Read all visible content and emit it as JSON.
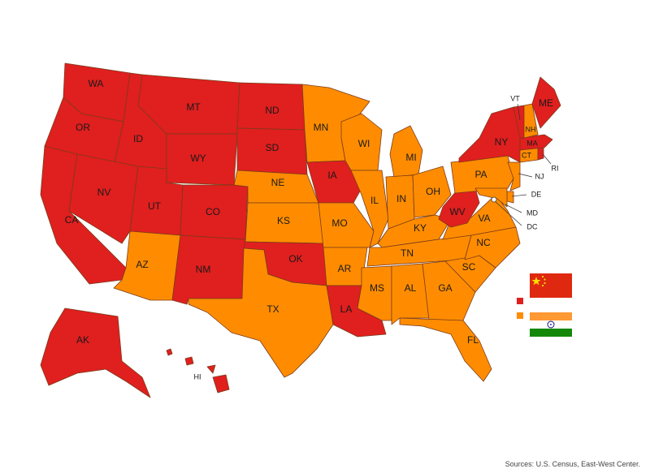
{
  "colors": {
    "china": "#e01f1f",
    "india": "#ff8c00",
    "border": "#7a3b1a"
  },
  "legend": [
    {
      "group": "china",
      "flag": "china-flag"
    },
    {
      "group": "india",
      "flag": "india-flag"
    }
  ],
  "states": {
    "WA": "china",
    "OR": "china",
    "CA": "china",
    "ID": "china",
    "NV": "china",
    "MT": "china",
    "WY": "china",
    "UT": "china",
    "CO": "china",
    "NM": "china",
    "ND": "china",
    "SD": "china",
    "IA": "china",
    "OK": "china",
    "LA": "china",
    "WV": "china",
    "NY": "china",
    "VT": "china",
    "ME": "china",
    "MA": "china",
    "RI": "china",
    "AK": "china",
    "HI": "china",
    "AZ": "india",
    "TX": "india",
    "NE": "india",
    "KS": "india",
    "MN": "india",
    "WI": "india",
    "MI": "india",
    "IL": "india",
    "MO": "india",
    "AR": "india",
    "IN": "india",
    "OH": "india",
    "KY": "india",
    "TN": "india",
    "MS": "india",
    "AL": "india",
    "GA": "india",
    "FL": "india",
    "SC": "india",
    "NC": "india",
    "VA": "india",
    "PA": "india",
    "NJ": "india",
    "DE": "india",
    "MD": "india",
    "DC": "india",
    "NH": "india",
    "CT": "india"
  },
  "source": "Sources: U.S. Census, East-West Center."
}
